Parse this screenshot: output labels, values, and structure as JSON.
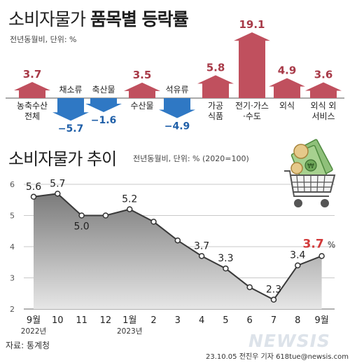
{
  "header": {
    "title_plain": "소비자물가",
    "title_bold": "품목별 등락률",
    "unit": "전년동월비, 단위: %"
  },
  "chart_data": [
    {
      "type": "bar",
      "title": "소비자물가 품목별 등락률",
      "unit": "전년동월비, 단위: %",
      "categories": [
        {
          "label": [
            "농축수산",
            "전체"
          ],
          "value": 3.7,
          "label_pos": "below"
        },
        {
          "label": [
            "채소류"
          ],
          "value": -5.7,
          "label_pos": "above"
        },
        {
          "label": [
            "축산물"
          ],
          "value": -1.6,
          "label_pos": "above"
        },
        {
          "label": [
            "수산물"
          ],
          "value": 3.5,
          "label_pos": "below"
        },
        {
          "label": [
            "석유류"
          ],
          "value": -4.9,
          "label_pos": "above"
        },
        {
          "label": [
            "가공",
            "식품"
          ],
          "value": 5.8,
          "label_pos": "below"
        },
        {
          "label": [
            "전기·가스",
            "·수도"
          ],
          "value": 19.1,
          "label_pos": "below"
        },
        {
          "label": [
            "외식"
          ],
          "value": 4.9,
          "label_pos": "below"
        },
        {
          "label": [
            "외식 외",
            "서비스"
          ],
          "value": 3.6,
          "label_pos": "below"
        }
      ],
      "value_labels": [
        "3.7",
        "−5.7",
        "−1.6",
        "3.5",
        "−4.9",
        "5.8",
        "19.1",
        "4.9",
        "3.6"
      ],
      "colors": {
        "positive": "#c0505e",
        "negative": "#2f78c4",
        "positive_text": "#a83a48",
        "negative_text": "#1f5fa8"
      }
    },
    {
      "type": "area",
      "title": "소비자물가 추이",
      "unit": "전년동월비, 단위: % (2020=100)",
      "x": [
        "9월",
        "10",
        "11",
        "12",
        "1월",
        "2",
        "3",
        "4",
        "5",
        "6",
        "7",
        "8",
        "9월"
      ],
      "x_years": [
        {
          "index": 0,
          "label": "2022년"
        },
        {
          "index": 4,
          "label": "2023년"
        }
      ],
      "values": [
        5.6,
        5.7,
        5.0,
        5.0,
        5.2,
        4.8,
        4.2,
        3.7,
        3.3,
        2.7,
        2.3,
        3.4,
        3.7
      ],
      "point_labels": [
        {
          "index": 0,
          "text": "5.6"
        },
        {
          "index": 1,
          "text": "5.7"
        },
        {
          "index": 2,
          "text": "5.0"
        },
        {
          "index": 4,
          "text": "5.2"
        },
        {
          "index": 7,
          "text": "3.7"
        },
        {
          "index": 8,
          "text": "3.3"
        },
        {
          "index": 10,
          "text": "2.3"
        },
        {
          "index": 11,
          "text": "3.4"
        }
      ],
      "highlight": {
        "index": 12,
        "text": "3.7",
        "suffix": "%",
        "color": "#d23a3a"
      },
      "yticks": [
        2,
        3,
        4,
        5,
        6
      ],
      "ylim": [
        2,
        6
      ],
      "grid": true
    }
  ],
  "title2": "소비자물가 추이",
  "unit2": "전년동월비, 단위: % (2020=100)",
  "source": "자료: 통계청",
  "credit": "23.10.05 전진우 기자 618tue@newsis.com",
  "logo": "NEWSIS",
  "icons": [
    "shopping-cart-icon",
    "banknote-icon",
    "coin-icon"
  ]
}
